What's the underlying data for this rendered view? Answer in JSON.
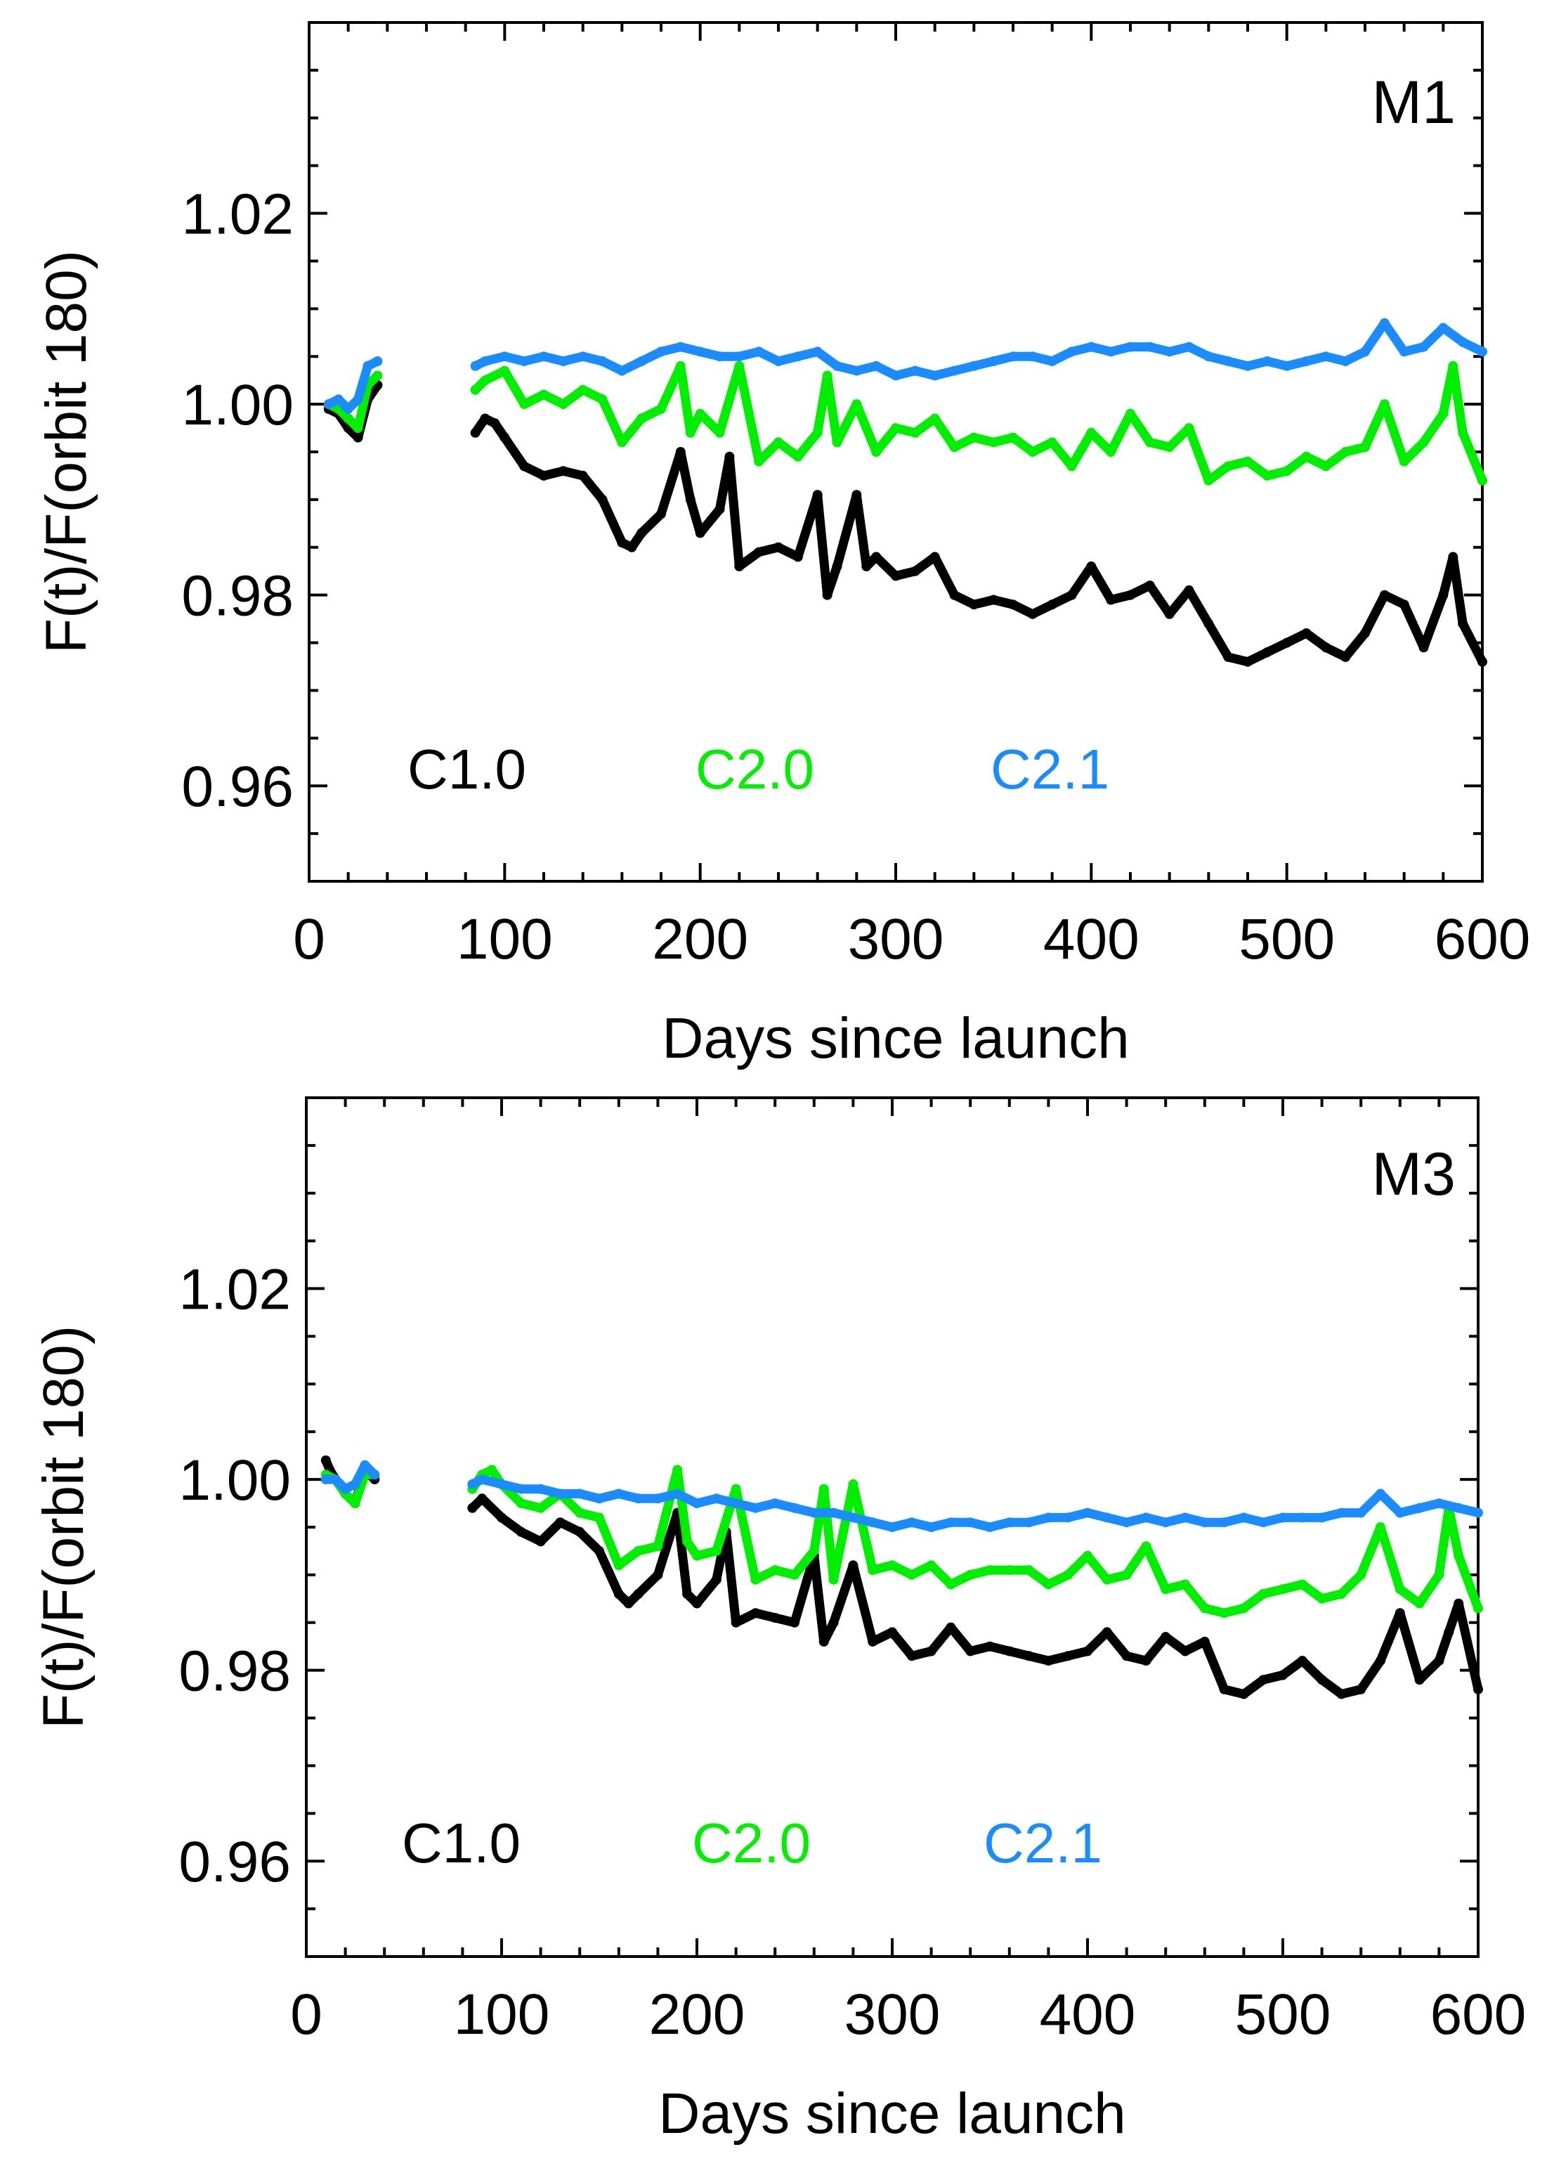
{
  "chart_data": [
    {
      "type": "scatter",
      "panel_label": "M1",
      "xlabel": "Days since launch",
      "ylabel": "F(t)/F(orbit 180)",
      "xlim": [
        0,
        600
      ],
      "ylim": [
        0.95,
        1.04
      ],
      "x_ticks": [
        0,
        100,
        200,
        300,
        400,
        500,
        600
      ],
      "x_tick_labels": [
        "0",
        "100",
        "200",
        "300",
        "400",
        "500",
        "600"
      ],
      "y_ticks": [
        0.96,
        0.98,
        1.0,
        1.02
      ],
      "y_tick_labels": [
        "0.96",
        "0.98",
        "1.00",
        "1.02"
      ],
      "series": [
        {
          "name": "C1.0",
          "color": "#000000",
          "x": [
            10,
            15,
            20,
            25,
            30,
            35,
            85,
            90,
            95,
            100,
            110,
            120,
            130,
            140,
            150,
            160,
            165,
            170,
            180,
            190,
            195,
            200,
            210,
            215,
            220,
            230,
            240,
            250,
            260,
            265,
            270,
            280,
            285,
            290,
            300,
            310,
            320,
            330,
            340,
            350,
            360,
            370,
            380,
            390,
            400,
            410,
            420,
            430,
            440,
            450,
            460,
            470,
            480,
            490,
            500,
            510,
            520,
            530,
            540,
            550,
            560,
            570,
            580,
            585,
            590,
            600
          ],
          "y": [
            0.9995,
            0.999,
            0.9975,
            0.9965,
            1.0005,
            1.002,
            0.997,
            0.9985,
            0.998,
            0.9965,
            0.9935,
            0.9925,
            0.993,
            0.9925,
            0.99,
            0.9855,
            0.985,
            0.9865,
            0.9885,
            0.995,
            0.99,
            0.9865,
            0.989,
            0.9945,
            0.983,
            0.9845,
            0.985,
            0.984,
            0.9905,
            0.98,
            0.983,
            0.9905,
            0.983,
            0.984,
            0.982,
            0.9825,
            0.984,
            0.98,
            0.979,
            0.9795,
            0.979,
            0.978,
            0.979,
            0.98,
            0.983,
            0.9795,
            0.98,
            0.981,
            0.978,
            0.9805,
            0.977,
            0.9735,
            0.973,
            0.974,
            0.975,
            0.976,
            0.9745,
            0.9735,
            0.976,
            0.98,
            0.979,
            0.9745,
            0.98,
            0.984,
            0.977,
            0.973
          ]
        },
        {
          "name": "C2.0",
          "color": "#00ee00",
          "x": [
            10,
            15,
            20,
            25,
            30,
            35,
            85,
            90,
            100,
            110,
            120,
            130,
            140,
            150,
            160,
            170,
            180,
            190,
            195,
            200,
            210,
            220,
            230,
            240,
            250,
            260,
            265,
            270,
            280,
            290,
            300,
            310,
            320,
            330,
            340,
            350,
            360,
            370,
            380,
            390,
            400,
            410,
            420,
            430,
            440,
            450,
            460,
            470,
            480,
            490,
            500,
            510,
            520,
            530,
            540,
            550,
            560,
            570,
            580,
            585,
            590,
            600
          ],
          "y": [
            1.0,
            0.9995,
            0.9985,
            0.9975,
            1.002,
            1.003,
            1.0015,
            1.0025,
            1.0035,
            1.0,
            1.001,
            1.0,
            1.0015,
            1.0005,
            0.996,
            0.9985,
            0.9995,
            1.004,
            0.997,
            0.999,
            0.997,
            1.004,
            0.994,
            0.996,
            0.9945,
            0.997,
            1.003,
            0.996,
            1.0,
            0.995,
            0.9975,
            0.997,
            0.9985,
            0.9955,
            0.9965,
            0.996,
            0.9965,
            0.995,
            0.996,
            0.9935,
            0.997,
            0.995,
            0.999,
            0.996,
            0.9955,
            0.9975,
            0.992,
            0.9935,
            0.994,
            0.9925,
            0.993,
            0.9945,
            0.9935,
            0.995,
            0.9955,
            1.0,
            0.994,
            0.996,
            0.999,
            1.004,
            0.997,
            0.992
          ]
        },
        {
          "name": "C2.1",
          "color": "#1a8cff",
          "x": [
            10,
            15,
            20,
            25,
            30,
            35,
            85,
            90,
            100,
            110,
            120,
            130,
            140,
            150,
            160,
            170,
            180,
            190,
            200,
            210,
            220,
            230,
            240,
            250,
            260,
            270,
            280,
            290,
            300,
            310,
            320,
            330,
            340,
            350,
            360,
            370,
            380,
            390,
            400,
            410,
            420,
            430,
            440,
            450,
            460,
            470,
            480,
            490,
            500,
            510,
            520,
            530,
            540,
            550,
            560,
            570,
            580,
            590,
            600
          ],
          "y": [
            1.0,
            1.0005,
            0.9995,
            1.0005,
            1.004,
            1.0045,
            1.004,
            1.0045,
            1.005,
            1.0045,
            1.005,
            1.0045,
            1.005,
            1.0045,
            1.0035,
            1.0045,
            1.0055,
            1.006,
            1.0055,
            1.005,
            1.005,
            1.0055,
            1.0045,
            1.005,
            1.0055,
            1.004,
            1.0035,
            1.004,
            1.003,
            1.0035,
            1.003,
            1.0035,
            1.004,
            1.0045,
            1.005,
            1.005,
            1.0045,
            1.0055,
            1.006,
            1.0055,
            1.006,
            1.006,
            1.0055,
            1.006,
            1.005,
            1.0045,
            1.004,
            1.0045,
            1.004,
            1.0045,
            1.005,
            1.0045,
            1.0055,
            1.0085,
            1.0055,
            1.006,
            1.008,
            1.0065,
            1.0055
          ]
        }
      ]
    },
    {
      "type": "scatter",
      "panel_label": "M3",
      "xlabel": "Days since launch",
      "ylabel": "F(t)/F(orbit 180)",
      "xlim": [
        0,
        600
      ],
      "ylim": [
        0.95,
        1.04
      ],
      "x_ticks": [
        0,
        100,
        200,
        300,
        400,
        500,
        600
      ],
      "x_tick_labels": [
        "0",
        "100",
        "200",
        "300",
        "400",
        "500",
        "600"
      ],
      "y_ticks": [
        0.96,
        0.98,
        1.0,
        1.02
      ],
      "y_tick_labels": [
        "0.96",
        "0.98",
        "1.00",
        "1.02"
      ],
      "series": [
        {
          "name": "C1.0",
          "color": "#000000",
          "x": [
            10,
            12,
            15,
            20,
            25,
            30,
            35,
            85,
            90,
            100,
            110,
            120,
            130,
            140,
            150,
            160,
            165,
            170,
            180,
            190,
            195,
            200,
            210,
            215,
            220,
            230,
            240,
            250,
            260,
            265,
            270,
            280,
            290,
            300,
            310,
            320,
            330,
            340,
            350,
            360,
            370,
            380,
            390,
            400,
            410,
            420,
            430,
            440,
            450,
            460,
            470,
            480,
            490,
            500,
            510,
            520,
            530,
            540,
            550,
            560,
            570,
            580,
            585,
            590,
            600
          ],
          "y": [
            1.002,
            1.001,
            1.0,
            0.9985,
            0.9975,
            1.001,
            1.0,
            0.997,
            0.998,
            0.996,
            0.9945,
            0.9935,
            0.9955,
            0.9945,
            0.9925,
            0.988,
            0.987,
            0.988,
            0.99,
            0.9965,
            0.988,
            0.987,
            0.9895,
            0.9945,
            0.985,
            0.986,
            0.9855,
            0.985,
            0.992,
            0.983,
            0.985,
            0.991,
            0.983,
            0.984,
            0.9815,
            0.982,
            0.9845,
            0.982,
            0.9825,
            0.982,
            0.9815,
            0.981,
            0.9815,
            0.982,
            0.984,
            0.9815,
            0.981,
            0.9835,
            0.982,
            0.983,
            0.978,
            0.9775,
            0.979,
            0.9795,
            0.981,
            0.979,
            0.9775,
            0.978,
            0.981,
            0.986,
            0.979,
            0.981,
            0.984,
            0.987,
            0.978
          ]
        },
        {
          "name": "C2.0",
          "color": "#00ee00",
          "x": [
            10,
            15,
            20,
            25,
            30,
            35,
            85,
            90,
            95,
            100,
            110,
            120,
            130,
            140,
            150,
            160,
            170,
            180,
            190,
            195,
            200,
            210,
            220,
            230,
            240,
            250,
            260,
            265,
            270,
            280,
            290,
            300,
            310,
            320,
            330,
            340,
            350,
            360,
            370,
            380,
            390,
            400,
            410,
            420,
            430,
            440,
            450,
            460,
            470,
            480,
            490,
            500,
            510,
            520,
            530,
            540,
            550,
            560,
            570,
            580,
            585,
            590,
            600
          ],
          "y": [
            1.0005,
            1.0,
            0.9985,
            0.9975,
            1.0005,
            1.0005,
            0.999,
            1.0005,
            1.001,
            0.9995,
            0.9975,
            0.997,
            0.9985,
            0.9965,
            0.996,
            0.991,
            0.9925,
            0.993,
            1.001,
            0.9935,
            0.992,
            0.9925,
            0.999,
            0.9895,
            0.9905,
            0.99,
            0.9925,
            0.999,
            0.9895,
            0.9995,
            0.9905,
            0.991,
            0.99,
            0.991,
            0.989,
            0.99,
            0.9905,
            0.9905,
            0.9905,
            0.989,
            0.99,
            0.992,
            0.9895,
            0.99,
            0.993,
            0.9885,
            0.989,
            0.9865,
            0.986,
            0.9865,
            0.988,
            0.9885,
            0.989,
            0.9875,
            0.988,
            0.99,
            0.995,
            0.9885,
            0.987,
            0.99,
            0.997,
            0.992,
            0.9865
          ]
        },
        {
          "name": "C2.1",
          "color": "#1a8cff",
          "x": [
            10,
            15,
            20,
            25,
            30,
            35,
            85,
            90,
            100,
            110,
            120,
            130,
            140,
            150,
            160,
            170,
            180,
            190,
            200,
            210,
            220,
            230,
            240,
            250,
            260,
            270,
            280,
            290,
            300,
            310,
            320,
            330,
            340,
            350,
            360,
            370,
            380,
            390,
            400,
            410,
            420,
            430,
            440,
            450,
            460,
            470,
            480,
            490,
            500,
            510,
            520,
            530,
            540,
            550,
            560,
            570,
            580,
            590,
            600
          ],
          "y": [
            1.0,
            1.0,
            0.999,
            0.9995,
            1.0015,
            1.0005,
            0.9995,
            1.0,
            0.9995,
            0.999,
            0.999,
            0.9985,
            0.9985,
            0.998,
            0.9985,
            0.998,
            0.998,
            0.9985,
            0.9975,
            0.998,
            0.9975,
            0.997,
            0.9975,
            0.997,
            0.9965,
            0.9965,
            0.996,
            0.9955,
            0.995,
            0.9955,
            0.995,
            0.9955,
            0.9955,
            0.995,
            0.9955,
            0.9955,
            0.996,
            0.996,
            0.9965,
            0.996,
            0.9955,
            0.996,
            0.9955,
            0.996,
            0.9955,
            0.9955,
            0.996,
            0.9955,
            0.996,
            0.996,
            0.996,
            0.9965,
            0.9965,
            0.9985,
            0.9965,
            0.997,
            0.9975,
            0.997,
            0.9965
          ]
        }
      ]
    }
  ]
}
